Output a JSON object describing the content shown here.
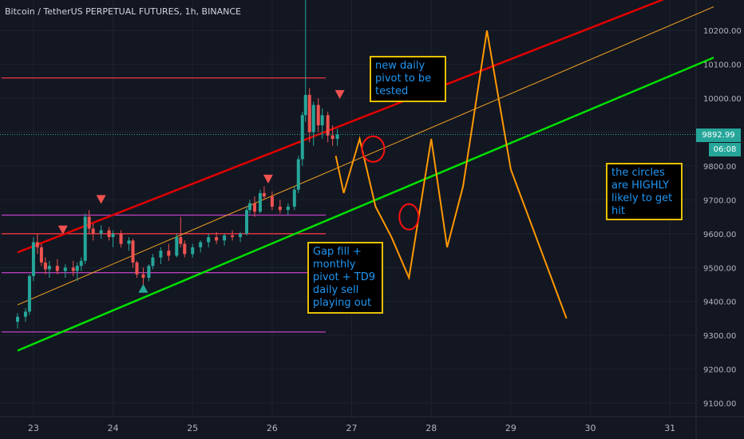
{
  "header": {
    "title": "Bitcoin / TetherUS PERPETUAL FUTURES, 1h, BINANCE"
  },
  "price_axis": {
    "last_price": "9892.99",
    "countdown": "06:08"
  },
  "notes": {
    "note1": "new daily pivot to be tested",
    "note2": "Gap fill + monthly pivot + TD9 daily sell playing out",
    "note3": "the circles are HIGHLY likely to get hit"
  },
  "colors": {
    "background": "#131722",
    "up_candle": "#26a69a",
    "down_candle": "#ef5350",
    "upper_channel": "#e00000",
    "lower_channel": "#00e000",
    "mid_channel": "#f0a020",
    "pivot_magenta": "#c040c0",
    "projection": "#ff9800",
    "note_border": "#e7c000",
    "note_text": "#2196f3"
  },
  "chart_data": {
    "type": "candlestick",
    "title": "Bitcoin / TetherUS PERPETUAL FUTURES, 1h, BINANCE",
    "ylim": [
      9060,
      10290
    ],
    "xlim": [
      22.8,
      31.55
    ],
    "x_ticks": [
      23,
      24,
      25,
      26,
      27,
      28,
      29,
      30,
      31
    ],
    "y_ticks": [
      "9100.00",
      "9200.00",
      "9300.00",
      "9400.00",
      "9500.00",
      "9600.00",
      "9700.00",
      "9800.00",
      "9900.00",
      "10000.00",
      "10100.00",
      "10200.00"
    ],
    "candles": [
      {
        "x": 22.8,
        "o": 9340,
        "h": 9365,
        "l": 9320,
        "c": 9355
      },
      {
        "x": 22.9,
        "o": 9355,
        "h": 9380,
        "l": 9340,
        "c": 9370
      },
      {
        "x": 22.95,
        "o": 9370,
        "h": 9480,
        "l": 9360,
        "c": 9475
      },
      {
        "x": 23.0,
        "o": 9475,
        "h": 9590,
        "l": 9460,
        "c": 9575
      },
      {
        "x": 23.05,
        "o": 9575,
        "h": 9600,
        "l": 9540,
        "c": 9560
      },
      {
        "x": 23.1,
        "o": 9560,
        "h": 9570,
        "l": 9505,
        "c": 9515
      },
      {
        "x": 23.15,
        "o": 9515,
        "h": 9530,
        "l": 9480,
        "c": 9495
      },
      {
        "x": 23.2,
        "o": 9495,
        "h": 9520,
        "l": 9470,
        "c": 9505
      },
      {
        "x": 23.3,
        "o": 9505,
        "h": 9525,
        "l": 9480,
        "c": 9490
      },
      {
        "x": 23.4,
        "o": 9490,
        "h": 9510,
        "l": 9470,
        "c": 9500
      },
      {
        "x": 23.5,
        "o": 9500,
        "h": 9520,
        "l": 9475,
        "c": 9490
      },
      {
        "x": 23.55,
        "o": 9490,
        "h": 9515,
        "l": 9460,
        "c": 9505
      },
      {
        "x": 23.6,
        "o": 9505,
        "h": 9530,
        "l": 9490,
        "c": 9520
      },
      {
        "x": 23.65,
        "o": 9520,
        "h": 9660,
        "l": 9510,
        "c": 9650
      },
      {
        "x": 23.7,
        "o": 9650,
        "h": 9670,
        "l": 9600,
        "c": 9615
      },
      {
        "x": 23.75,
        "o": 9615,
        "h": 9630,
        "l": 9580,
        "c": 9600
      },
      {
        "x": 23.85,
        "o": 9600,
        "h": 9625,
        "l": 9585,
        "c": 9610
      },
      {
        "x": 23.95,
        "o": 9610,
        "h": 9620,
        "l": 9580,
        "c": 9590
      },
      {
        "x": 24.0,
        "o": 9590,
        "h": 9610,
        "l": 9560,
        "c": 9600
      },
      {
        "x": 24.1,
        "o": 9600,
        "h": 9610,
        "l": 9560,
        "c": 9570
      },
      {
        "x": 24.2,
        "o": 9570,
        "h": 9590,
        "l": 9550,
        "c": 9580
      },
      {
        "x": 24.25,
        "o": 9580,
        "h": 9585,
        "l": 9500,
        "c": 9515
      },
      {
        "x": 24.3,
        "o": 9515,
        "h": 9520,
        "l": 9470,
        "c": 9480
      },
      {
        "x": 24.38,
        "o": 9480,
        "h": 9500,
        "l": 9450,
        "c": 9470
      },
      {
        "x": 24.45,
        "o": 9470,
        "h": 9510,
        "l": 9460,
        "c": 9505
      },
      {
        "x": 24.5,
        "o": 9505,
        "h": 9540,
        "l": 9495,
        "c": 9530
      },
      {
        "x": 24.6,
        "o": 9530,
        "h": 9560,
        "l": 9510,
        "c": 9550
      },
      {
        "x": 24.7,
        "o": 9550,
        "h": 9570,
        "l": 9520,
        "c": 9535
      },
      {
        "x": 24.8,
        "o": 9535,
        "h": 9600,
        "l": 9530,
        "c": 9590
      },
      {
        "x": 24.85,
        "o": 9590,
        "h": 9650,
        "l": 9560,
        "c": 9570
      },
      {
        "x": 24.9,
        "o": 9570,
        "h": 9580,
        "l": 9530,
        "c": 9540
      },
      {
        "x": 25.0,
        "o": 9540,
        "h": 9570,
        "l": 9530,
        "c": 9560
      },
      {
        "x": 25.1,
        "o": 9560,
        "h": 9580,
        "l": 9545,
        "c": 9575
      },
      {
        "x": 25.2,
        "o": 9575,
        "h": 9600,
        "l": 9560,
        "c": 9590
      },
      {
        "x": 25.3,
        "o": 9590,
        "h": 9605,
        "l": 9570,
        "c": 9580
      },
      {
        "x": 25.4,
        "o": 9580,
        "h": 9600,
        "l": 9565,
        "c": 9595
      },
      {
        "x": 25.5,
        "o": 9595,
        "h": 9610,
        "l": 9580,
        "c": 9590
      },
      {
        "x": 25.6,
        "o": 9590,
        "h": 9605,
        "l": 9575,
        "c": 9600
      },
      {
        "x": 25.68,
        "o": 9600,
        "h": 9680,
        "l": 9595,
        "c": 9670
      },
      {
        "x": 25.72,
        "o": 9670,
        "h": 9700,
        "l": 9660,
        "c": 9690
      },
      {
        "x": 25.78,
        "o": 9690,
        "h": 9710,
        "l": 9650,
        "c": 9665
      },
      {
        "x": 25.85,
        "o": 9665,
        "h": 9730,
        "l": 9660,
        "c": 9720
      },
      {
        "x": 25.9,
        "o": 9720,
        "h": 9740,
        "l": 9700,
        "c": 9710
      },
      {
        "x": 26.0,
        "o": 9710,
        "h": 9725,
        "l": 9670,
        "c": 9680
      },
      {
        "x": 26.1,
        "o": 9680,
        "h": 9700,
        "l": 9660,
        "c": 9670
      },
      {
        "x": 26.2,
        "o": 9670,
        "h": 9690,
        "l": 9655,
        "c": 9680
      },
      {
        "x": 26.28,
        "o": 9680,
        "h": 9740,
        "l": 9670,
        "c": 9730
      },
      {
        "x": 26.33,
        "o": 9730,
        "h": 9830,
        "l": 9720,
        "c": 9820
      },
      {
        "x": 26.38,
        "o": 9820,
        "h": 9960,
        "l": 9800,
        "c": 9950
      },
      {
        "x": 26.42,
        "o": 9950,
        "h": 10290,
        "l": 9930,
        "c": 10010
      },
      {
        "x": 26.47,
        "o": 10010,
        "h": 10030,
        "l": 9870,
        "c": 9900
      },
      {
        "x": 26.52,
        "o": 9900,
        "h": 9990,
        "l": 9860,
        "c": 9980
      },
      {
        "x": 26.58,
        "o": 9980,
        "h": 10000,
        "l": 9900,
        "c": 9920
      },
      {
        "x": 26.63,
        "o": 9920,
        "h": 9970,
        "l": 9880,
        "c": 9950
      },
      {
        "x": 26.7,
        "o": 9950,
        "h": 9960,
        "l": 9870,
        "c": 9890
      },
      {
        "x": 26.76,
        "o": 9890,
        "h": 9920,
        "l": 9860,
        "c": 9880
      },
      {
        "x": 26.82,
        "o": 9880,
        "h": 9910,
        "l": 9860,
        "c": 9893
      }
    ],
    "horizontal_levels": [
      {
        "price": 10060,
        "color": "#f23645"
      },
      {
        "price": 9655,
        "color": "#c040c0"
      },
      {
        "price": 9600,
        "color": "#f23645"
      },
      {
        "price": 9485,
        "color": "#c040c0"
      },
      {
        "price": 9310,
        "color": "#c040c0"
      }
    ],
    "trend_lines": [
      {
        "points": [
          [
            22.8,
            9545
          ],
          [
            31.55,
            10350
          ]
        ],
        "color": "#e00000"
      },
      {
        "points": [
          [
            22.8,
            9255
          ],
          [
            31.55,
            10120
          ]
        ],
        "color": "#00e000"
      },
      {
        "points": [
          [
            22.8,
            9390
          ],
          [
            31.55,
            10270
          ]
        ],
        "color": "#f0a020"
      }
    ],
    "projection_path": [
      [
        26.8,
        9830
      ],
      [
        26.9,
        9720
      ],
      [
        27.1,
        9880
      ],
      [
        27.3,
        9680
      ],
      [
        27.5,
        9590
      ],
      [
        27.72,
        9470
      ],
      [
        28.0,
        9880
      ],
      [
        28.2,
        9560
      ],
      [
        28.4,
        9740
      ],
      [
        28.7,
        10200
      ],
      [
        29.0,
        9790
      ],
      [
        29.7,
        9350
      ]
    ]
  }
}
